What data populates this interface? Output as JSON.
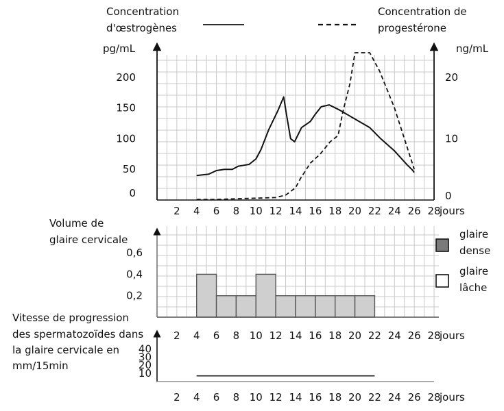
{
  "colors": {
    "grid": "#c9c9c9",
    "axis": "#111111",
    "bar_fill": "#cfcfcf",
    "dense_swatch": "#7a7a7a",
    "loose_swatch": "#ffffff"
  },
  "chart_data": [
    {
      "type": "line",
      "title": "",
      "xlabel": "jours",
      "x_ticks": [
        2,
        4,
        6,
        8,
        10,
        12,
        14,
        16,
        18,
        20,
        22,
        24,
        26,
        28
      ],
      "xlim": [
        0,
        28
      ],
      "grid": true,
      "y_left": {
        "label_line1": "Concentration",
        "label_line2": "d'œstrogènes",
        "unit": "pg/mL",
        "ticks": [
          0,
          50,
          100,
          150,
          200
        ],
        "ylim": [
          0,
          250
        ]
      },
      "y_right": {
        "label_line1": "Concentration de",
        "label_line2": "progestérone",
        "unit": "ng/mL",
        "ticks": [
          0,
          10,
          20
        ],
        "ylim": [
          0,
          25
        ]
      },
      "series": [
        {
          "name": "Concentration d'œstrogènes",
          "axis": "left",
          "style": "solid",
          "points": [
            [
              4,
              40
            ],
            [
              4.6,
              41
            ],
            [
              5.2,
              42
            ],
            [
              6,
              48
            ],
            [
              6.8,
              50
            ],
            [
              7.6,
              50
            ],
            [
              8.2,
              55
            ],
            [
              9.3,
              58
            ],
            [
              10,
              67
            ],
            [
              10.5,
              82
            ],
            [
              11.3,
              115
            ],
            [
              12.2,
              145
            ],
            [
              12.8,
              168
            ],
            [
              13.1,
              138
            ],
            [
              13.5,
              100
            ],
            [
              13.9,
              95
            ],
            [
              14.6,
              118
            ],
            [
              15.5,
              128
            ],
            [
              16,
              140
            ],
            [
              16.6,
              152
            ],
            [
              17.4,
              155
            ],
            [
              18.4,
              147
            ],
            [
              20,
              132
            ],
            [
              21.5,
              118
            ],
            [
              22.6,
              100
            ],
            [
              24,
              80
            ],
            [
              25.3,
              57
            ],
            [
              25.8,
              49
            ],
            [
              26,
              45
            ]
          ]
        },
        {
          "name": "Concentration de progestérone",
          "axis": "right",
          "style": "dashed",
          "points": [
            [
              4,
              0.1
            ],
            [
              6,
              0.1
            ],
            [
              8,
              0.2
            ],
            [
              10,
              0.3
            ],
            [
              12,
              0.4
            ],
            [
              13,
              0.8
            ],
            [
              14,
              2
            ],
            [
              14.5,
              3.5
            ],
            [
              15.5,
              6
            ],
            [
              16.5,
              7.5
            ],
            [
              17.5,
              9.5
            ],
            [
              18.3,
              10.5
            ],
            [
              18.8,
              14.5
            ],
            [
              19.5,
              19
            ],
            [
              20,
              24
            ],
            [
              21.5,
              24
            ],
            [
              22.5,
              21
            ],
            [
              24,
              15
            ],
            [
              25.2,
              9
            ],
            [
              26,
              5
            ]
          ]
        }
      ]
    },
    {
      "type": "bar",
      "title": "",
      "ylabel_line1": "Volume de",
      "ylabel_line2": "glaire cervicale",
      "xlabel": "jours",
      "x_ticks": [
        2,
        4,
        6,
        8,
        10,
        12,
        14,
        16,
        18,
        20,
        22,
        24,
        26,
        28
      ],
      "xlim": [
        0,
        28
      ],
      "y_ticks": [
        0.2,
        0.4,
        0.6
      ],
      "ylim": [
        0,
        0.85
      ],
      "grid": true,
      "bars": [
        {
          "from": 4,
          "to": 6,
          "value": 0.4
        },
        {
          "from": 6,
          "to": 8,
          "value": 0.2
        },
        {
          "from": 8,
          "to": 10,
          "value": 0.2
        },
        {
          "from": 10,
          "to": 12,
          "value": 0.4
        },
        {
          "from": 12,
          "to": 14,
          "value": 0.2
        },
        {
          "from": 14,
          "to": 16,
          "value": 0.2
        },
        {
          "from": 16,
          "to": 18,
          "value": 0.2
        },
        {
          "from": 18,
          "to": 20,
          "value": 0.2
        },
        {
          "from": 20,
          "to": 22,
          "value": 0.2
        }
      ],
      "legend": [
        {
          "label_line1": "glaire",
          "label_line2": "dense",
          "swatch": "dense"
        },
        {
          "label_line1": "glaire",
          "label_line2": "lâche",
          "swatch": "loose"
        }
      ]
    },
    {
      "type": "line",
      "title": "",
      "ylabel_line1": "Vitesse de progression",
      "ylabel_line2": "des spermatozoïdes dans",
      "ylabel_line3": "la glaire cervicale en",
      "ylabel_line4": "mm/15min",
      "xlabel": "jours",
      "x_ticks": [
        2,
        4,
        6,
        8,
        10,
        12,
        14,
        16,
        18,
        20,
        22,
        24,
        26,
        28
      ],
      "xlim": [
        0,
        28
      ],
      "y_ticks": [
        10,
        20,
        30,
        40
      ],
      "ylim": [
        0,
        45
      ],
      "grid": false,
      "series": [
        {
          "style": "solid",
          "points": [
            [
              4,
              7
            ],
            [
              22,
              7
            ]
          ]
        }
      ]
    }
  ]
}
